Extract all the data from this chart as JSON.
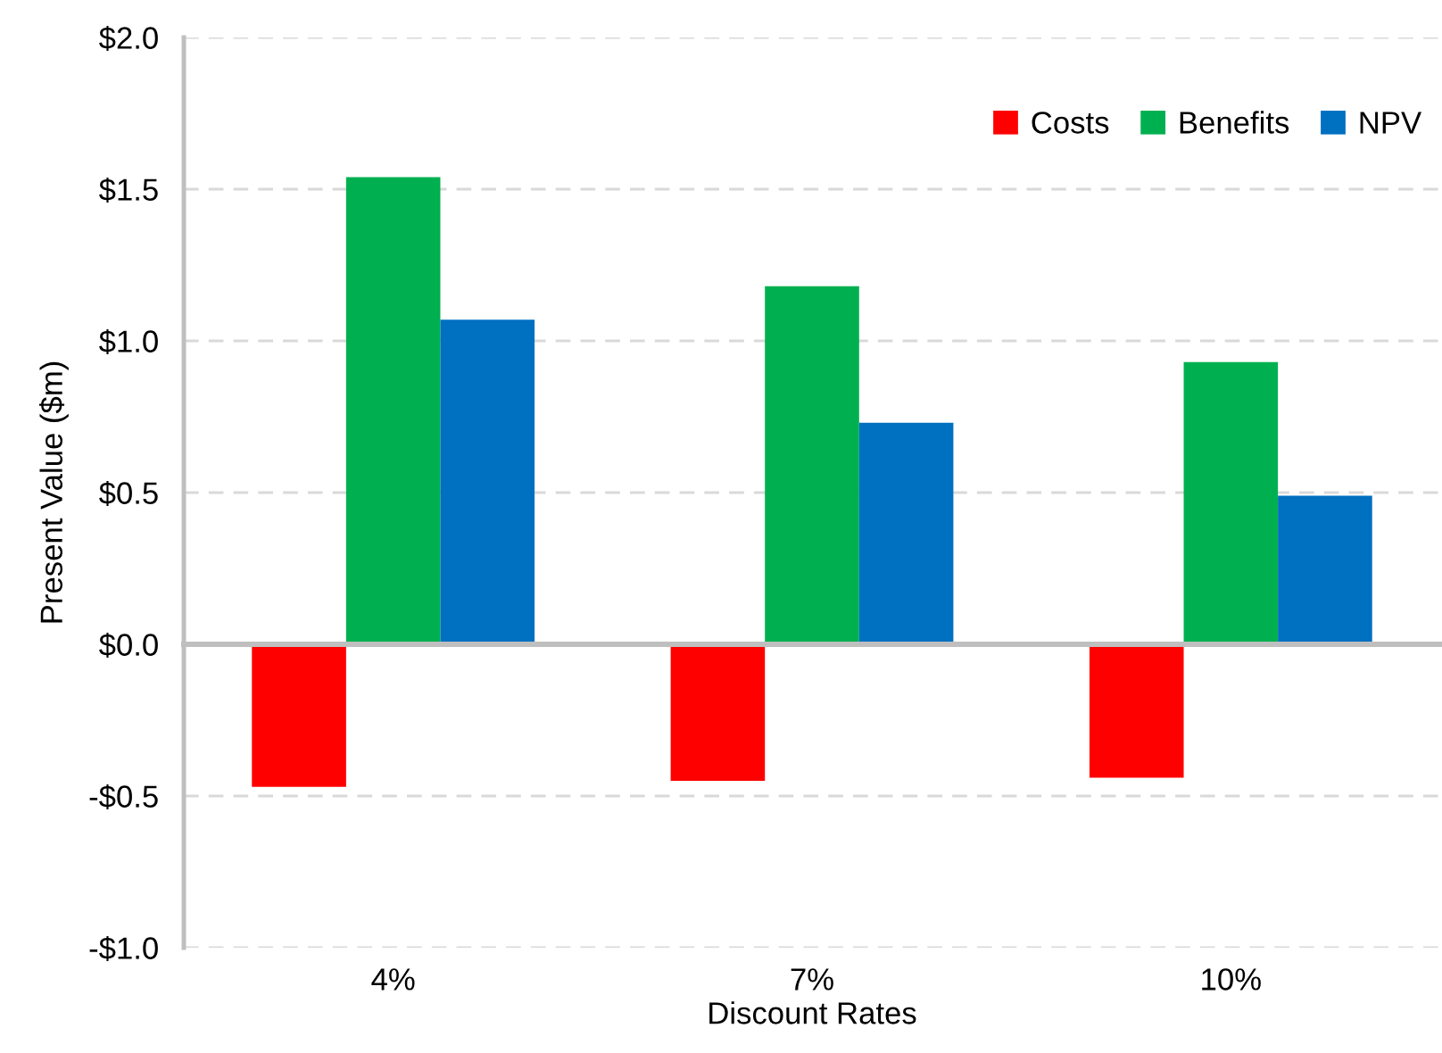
{
  "chart_data": {
    "type": "bar",
    "xlabel": "Discount Rates",
    "ylabel": "Present Value ($m)",
    "categories": [
      "4%",
      "7%",
      "10%"
    ],
    "series": [
      {
        "name": "Costs",
        "color": "#ff0000",
        "values": [
          -0.47,
          -0.45,
          -0.44
        ]
      },
      {
        "name": "Benefits",
        "color": "#00b050",
        "values": [
          1.54,
          1.18,
          0.93
        ]
      },
      {
        "name": "NPV",
        "color": "#0070c0",
        "values": [
          1.07,
          0.73,
          0.49
        ]
      }
    ],
    "ylim": [
      -1.0,
      2.0
    ],
    "yticks": [
      {
        "value": -1.0,
        "label": "-$1.0"
      },
      {
        "value": -0.5,
        "label": "-$0.5"
      },
      {
        "value": 0.0,
        "label": "$0.0"
      },
      {
        "value": 0.5,
        "label": "$0.5"
      },
      {
        "value": 1.0,
        "label": "$1.0"
      },
      {
        "value": 1.5,
        "label": "$1.5"
      },
      {
        "value": 2.0,
        "label": "$2.0"
      }
    ],
    "grid": "y",
    "legend": "top right"
  }
}
